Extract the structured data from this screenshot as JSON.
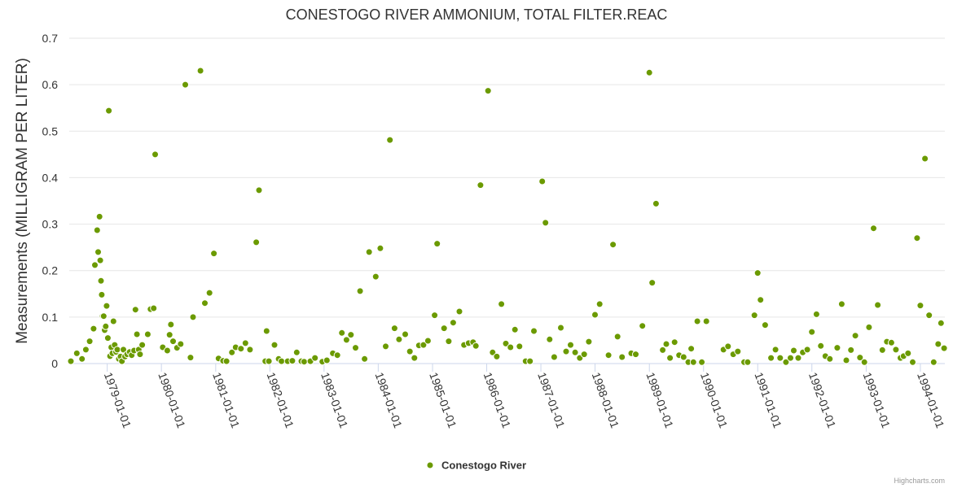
{
  "chart_data": {
    "type": "scatter",
    "title": "CONESTOGO RIVER AMMONIUM, TOTAL FILTER.REAC",
    "ylabel": "Measurements (MILLIGRAM PER LITER)",
    "ylim": [
      0,
      0.7
    ],
    "yticks": [
      "0",
      "0.1",
      "0.2",
      "0.3",
      "0.4",
      "0.5",
      "0.6",
      "0.7"
    ],
    "xlim": [
      "1978-04-20",
      "1994-06-15"
    ],
    "xticks": [
      "1979-01-01",
      "1980-01-01",
      "1981-01-01",
      "1982-01-01",
      "1983-01-01",
      "1984-01-01",
      "1985-01-01",
      "1986-01-01",
      "1987-01-01",
      "1988-01-01",
      "1989-01-01",
      "1990-01-01",
      "1991-01-01",
      "1992-01-01",
      "1993-01-01",
      "1994-01-01"
    ],
    "grid": true,
    "legend": "bottom-center",
    "series": [
      {
        "name": "Conestogo River",
        "color": "#6b9a00",
        "points": [
          [
            "1978-05-01",
            0.005
          ],
          [
            "1978-06-10",
            0.022
          ],
          [
            "1978-07-15",
            0.01
          ],
          [
            "1978-08-10",
            0.03
          ],
          [
            "1978-09-05",
            0.048
          ],
          [
            "1978-10-01",
            0.075
          ],
          [
            "1978-10-10",
            0.212
          ],
          [
            "1978-10-25",
            0.287
          ],
          [
            "1978-11-01",
            0.24
          ],
          [
            "1978-11-10",
            0.316
          ],
          [
            "1978-11-15",
            0.222
          ],
          [
            "1978-11-20",
            0.178
          ],
          [
            "1978-11-25",
            0.148
          ],
          [
            "1978-12-01",
            0.102
          ],
          [
            "1978-12-08",
            0.102
          ],
          [
            "1978-12-15",
            0.072
          ],
          [
            "1978-12-22",
            0.08
          ],
          [
            "1978-12-28",
            0.124
          ],
          [
            "1979-01-05",
            0.055
          ],
          [
            "1979-01-12",
            0.544
          ],
          [
            "1979-01-20",
            0.016
          ],
          [
            "1979-01-28",
            0.035
          ],
          [
            "1979-02-05",
            0.022
          ],
          [
            "1979-02-12",
            0.091
          ],
          [
            "1979-02-20",
            0.04
          ],
          [
            "1979-03-01",
            0.025
          ],
          [
            "1979-03-10",
            0.03
          ],
          [
            "1979-03-20",
            0.01
          ],
          [
            "1979-04-01",
            0.015
          ],
          [
            "1979-04-10",
            0.005
          ],
          [
            "1979-04-20",
            0.03
          ],
          [
            "1979-05-01",
            0.015
          ],
          [
            "1979-05-15",
            0.02
          ],
          [
            "1979-06-01",
            0.025
          ],
          [
            "1979-06-15",
            0.018
          ],
          [
            "1979-07-01",
            0.028
          ],
          [
            "1979-07-10",
            0.116
          ],
          [
            "1979-07-20",
            0.063
          ],
          [
            "1979-08-01",
            0.03
          ],
          [
            "1979-08-10",
            0.02
          ],
          [
            "1979-08-25",
            0.04
          ],
          [
            "1979-10-01",
            0.063
          ],
          [
            "1979-10-20",
            0.117
          ],
          [
            "1979-11-10",
            0.119
          ],
          [
            "1979-11-20",
            0.45
          ],
          [
            "1980-01-10",
            0.035
          ],
          [
            "1980-02-10",
            0.028
          ],
          [
            "1980-02-25",
            0.062
          ],
          [
            "1980-03-05",
            0.084
          ],
          [
            "1980-03-20",
            0.048
          ],
          [
            "1980-04-15",
            0.034
          ],
          [
            "1980-05-10",
            0.042
          ],
          [
            "1980-06-10",
            0.6
          ],
          [
            "1980-07-15",
            0.013
          ],
          [
            "1980-08-01",
            0.1
          ],
          [
            "1980-09-20",
            0.63
          ],
          [
            "1980-10-20",
            0.13
          ],
          [
            "1980-11-20",
            0.152
          ],
          [
            "1980-12-20",
            0.237
          ],
          [
            "1981-01-20",
            0.011
          ],
          [
            "1981-02-20",
            0.006
          ],
          [
            "1981-03-15",
            0.005
          ],
          [
            "1981-04-20",
            0.024
          ],
          [
            "1981-05-15",
            0.035
          ],
          [
            "1981-06-20",
            0.032
          ],
          [
            "1981-07-20",
            0.044
          ],
          [
            "1981-08-20",
            0.03
          ],
          [
            "1981-10-01",
            0.261
          ],
          [
            "1981-10-20",
            0.373
          ],
          [
            "1981-12-01",
            0.005
          ],
          [
            "1981-12-10",
            0.07
          ],
          [
            "1981-12-25",
            0.005
          ],
          [
            "1982-02-01",
            0.04
          ],
          [
            "1982-03-01",
            0.01
          ],
          [
            "1982-03-20",
            0.005
          ],
          [
            "1982-05-01",
            0.005
          ],
          [
            "1982-06-01",
            0.006
          ],
          [
            "1982-07-01",
            0.024
          ],
          [
            "1982-08-01",
            0.005
          ],
          [
            "1982-08-20",
            0.004
          ],
          [
            "1982-10-01",
            0.005
          ],
          [
            "1982-11-01",
            0.012
          ],
          [
            "1982-12-20",
            0.004
          ],
          [
            "1983-01-20",
            0.007
          ],
          [
            "1983-03-01",
            0.022
          ],
          [
            "1983-04-01",
            0.018
          ],
          [
            "1983-05-01",
            0.066
          ],
          [
            "1983-06-01",
            0.051
          ],
          [
            "1983-07-01",
            0.062
          ],
          [
            "1983-08-01",
            0.034
          ],
          [
            "1983-09-01",
            0.156
          ],
          [
            "1983-10-01",
            0.01
          ],
          [
            "1983-11-01",
            0.24
          ],
          [
            "1983-12-15",
            0.187
          ],
          [
            "1984-01-15",
            0.248
          ],
          [
            "1984-02-20",
            0.037
          ],
          [
            "1984-03-20",
            0.481
          ],
          [
            "1984-04-20",
            0.076
          ],
          [
            "1984-05-20",
            0.052
          ],
          [
            "1984-07-01",
            0.063
          ],
          [
            "1984-08-01",
            0.026
          ],
          [
            "1984-09-01",
            0.012
          ],
          [
            "1984-10-01",
            0.039
          ],
          [
            "1984-11-01",
            0.04
          ],
          [
            "1984-12-01",
            0.049
          ],
          [
            "1985-01-15",
            0.104
          ],
          [
            "1985-02-01",
            0.258
          ],
          [
            "1985-03-20",
            0.076
          ],
          [
            "1985-04-20",
            0.048
          ],
          [
            "1985-05-20",
            0.088
          ],
          [
            "1985-07-01",
            0.112
          ],
          [
            "1985-08-01",
            0.04
          ],
          [
            "1985-09-01",
            0.044
          ],
          [
            "1985-10-01",
            0.046
          ],
          [
            "1985-10-20",
            0.038
          ],
          [
            "1985-11-20",
            0.384
          ],
          [
            "1986-01-10",
            0.587
          ],
          [
            "1986-02-10",
            0.024
          ],
          [
            "1986-03-10",
            0.015
          ],
          [
            "1986-04-10",
            0.128
          ],
          [
            "1986-05-10",
            0.043
          ],
          [
            "1986-06-10",
            0.035
          ],
          [
            "1986-07-10",
            0.073
          ],
          [
            "1986-08-10",
            0.037
          ],
          [
            "1986-09-20",
            0.005
          ],
          [
            "1986-10-20",
            0.005
          ],
          [
            "1986-11-15",
            0.07
          ],
          [
            "1987-01-10",
            0.392
          ],
          [
            "1987-02-01",
            0.303
          ],
          [
            "1987-03-01",
            0.052
          ],
          [
            "1987-04-01",
            0.014
          ],
          [
            "1987-05-15",
            0.077
          ],
          [
            "1987-06-20",
            0.026
          ],
          [
            "1987-07-20",
            0.04
          ],
          [
            "1987-08-20",
            0.024
          ],
          [
            "1987-09-20",
            0.012
          ],
          [
            "1987-10-20",
            0.02
          ],
          [
            "1987-11-20",
            0.047
          ],
          [
            "1988-01-01",
            0.105
          ],
          [
            "1988-02-01",
            0.128
          ],
          [
            "1988-04-01",
            0.018
          ],
          [
            "1988-05-01",
            0.256
          ],
          [
            "1988-06-01",
            0.058
          ],
          [
            "1988-07-01",
            0.014
          ],
          [
            "1988-09-01",
            0.022
          ],
          [
            "1988-10-01",
            0.02
          ],
          [
            "1988-11-15",
            0.081
          ],
          [
            "1989-01-01",
            0.626
          ],
          [
            "1989-01-20",
            0.174
          ],
          [
            "1989-02-15",
            0.344
          ],
          [
            "1989-04-01",
            0.029
          ],
          [
            "1989-04-25",
            0.042
          ],
          [
            "1989-05-20",
            0.012
          ],
          [
            "1989-06-20",
            0.046
          ],
          [
            "1989-07-20",
            0.018
          ],
          [
            "1989-08-20",
            0.014
          ],
          [
            "1989-09-20",
            0.003
          ],
          [
            "1989-10-10",
            0.032
          ],
          [
            "1989-10-25",
            0.003
          ],
          [
            "1989-11-20",
            0.091
          ],
          [
            "1989-12-20",
            0.003
          ],
          [
            "1990-01-20",
            0.091
          ],
          [
            "1990-05-15",
            0.03
          ],
          [
            "1990-06-15",
            0.037
          ],
          [
            "1990-07-20",
            0.02
          ],
          [
            "1990-08-20",
            0.026
          ],
          [
            "1990-10-01",
            0.003
          ],
          [
            "1990-10-25",
            0.003
          ],
          [
            "1990-12-10",
            0.104
          ],
          [
            "1991-01-01",
            0.195
          ],
          [
            "1991-01-20",
            0.137
          ],
          [
            "1991-02-20",
            0.083
          ],
          [
            "1991-04-01",
            0.012
          ],
          [
            "1991-05-01",
            0.03
          ],
          [
            "1991-06-01",
            0.012
          ],
          [
            "1991-07-10",
            0.003
          ],
          [
            "1991-08-10",
            0.012
          ],
          [
            "1991-09-01",
            0.028
          ],
          [
            "1991-10-01",
            0.012
          ],
          [
            "1991-11-01",
            0.024
          ],
          [
            "1991-12-01",
            0.03
          ],
          [
            "1992-01-01",
            0.068
          ],
          [
            "1992-02-01",
            0.106
          ],
          [
            "1992-03-01",
            0.038
          ],
          [
            "1992-04-01",
            0.016
          ],
          [
            "1992-05-01",
            0.01
          ],
          [
            "1992-06-20",
            0.034
          ],
          [
            "1992-07-20",
            0.128
          ],
          [
            "1992-08-20",
            0.007
          ],
          [
            "1992-09-20",
            0.029
          ],
          [
            "1992-10-20",
            0.06
          ],
          [
            "1992-11-20",
            0.013
          ],
          [
            "1992-12-20",
            0.003
          ],
          [
            "1993-01-20",
            0.078
          ],
          [
            "1993-02-20",
            0.291
          ],
          [
            "1993-03-20",
            0.126
          ],
          [
            "1993-04-20",
            0.029
          ],
          [
            "1993-05-20",
            0.047
          ],
          [
            "1993-06-20",
            0.045
          ],
          [
            "1993-07-20",
            0.03
          ],
          [
            "1993-08-20",
            0.012
          ],
          [
            "1993-09-10",
            0.016
          ],
          [
            "1993-10-10",
            0.022
          ],
          [
            "1993-11-10",
            0.003
          ],
          [
            "1993-12-10",
            0.27
          ],
          [
            "1994-01-01",
            0.125
          ],
          [
            "1994-02-01",
            0.441
          ],
          [
            "1994-03-01",
            0.104
          ],
          [
            "1994-04-01",
            0.003
          ],
          [
            "1994-05-01",
            0.042
          ],
          [
            "1994-05-20",
            0.087
          ],
          [
            "1994-06-10",
            0.033
          ]
        ]
      }
    ]
  },
  "legend": {
    "label": "Conestogo River"
  },
  "credits": "Highcharts.com"
}
